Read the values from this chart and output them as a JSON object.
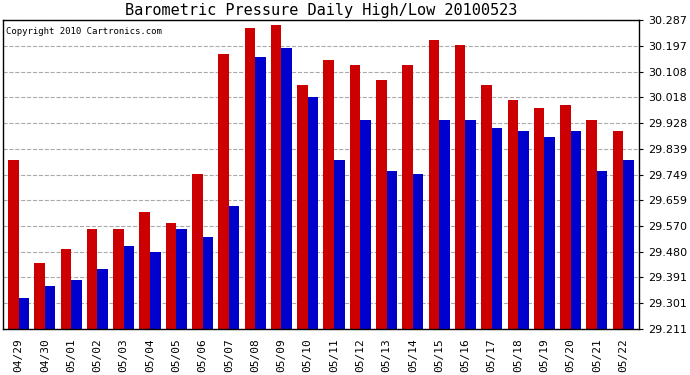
{
  "title": "Barometric Pressure Daily High/Low 20100523",
  "copyright": "Copyright 2010 Cartronics.com",
  "categories": [
    "04/29",
    "04/30",
    "05/01",
    "05/02",
    "05/03",
    "05/04",
    "05/05",
    "05/06",
    "05/07",
    "05/08",
    "05/09",
    "05/10",
    "05/11",
    "05/12",
    "05/13",
    "05/14",
    "05/15",
    "05/16",
    "05/17",
    "05/18",
    "05/19",
    "05/20",
    "05/21",
    "05/22"
  ],
  "high": [
    29.8,
    29.44,
    29.49,
    29.56,
    29.56,
    29.62,
    29.58,
    29.75,
    30.17,
    30.26,
    30.27,
    30.06,
    30.15,
    30.13,
    30.08,
    30.13,
    30.22,
    30.2,
    30.06,
    30.01,
    29.98,
    29.99,
    29.94,
    29.9
  ],
  "low": [
    29.32,
    29.36,
    29.38,
    29.42,
    29.5,
    29.48,
    29.56,
    29.53,
    29.64,
    30.16,
    30.19,
    30.02,
    29.8,
    29.94,
    29.76,
    29.75,
    29.94,
    29.94,
    29.91,
    29.9,
    29.88,
    29.9,
    29.76,
    29.8
  ],
  "ylim_min": 29.211,
  "ylim_max": 30.287,
  "yticks": [
    29.211,
    29.301,
    29.391,
    29.48,
    29.57,
    29.659,
    29.749,
    29.839,
    29.928,
    30.018,
    30.108,
    30.197,
    30.287
  ],
  "high_color": "#cc0000",
  "low_color": "#0000cc",
  "bg_color": "#ffffff",
  "plot_bg_color": "#ffffff",
  "grid_color": "#aaaaaa",
  "title_fontsize": 11,
  "tick_fontsize": 8,
  "bar_width": 0.4,
  "figwidth": 6.9,
  "figheight": 3.75,
  "dpi": 100
}
